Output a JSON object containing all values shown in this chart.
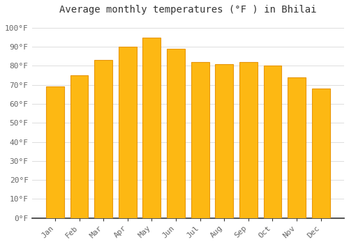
{
  "title": "Average monthly temperatures (°F ) in Bhilai",
  "months": [
    "Jan",
    "Feb",
    "Mar",
    "Apr",
    "May",
    "Jun",
    "Jul",
    "Aug",
    "Sep",
    "Oct",
    "Nov",
    "Dec"
  ],
  "values": [
    69,
    75,
    83,
    90,
    95,
    89,
    82,
    81,
    82,
    80,
    74,
    68
  ],
  "bar_color": "#FDB813",
  "bar_edge_color": "#E8960C",
  "background_color": "#FFFFFF",
  "plot_bg_color": "#FFFFFF",
  "grid_color": "#DDDDDD",
  "ytick_labels": [
    "0°F",
    "10°F",
    "20°F",
    "30°F",
    "40°F",
    "50°F",
    "60°F",
    "70°F",
    "80°F",
    "90°F",
    "100°F"
  ],
  "ytick_values": [
    0,
    10,
    20,
    30,
    40,
    50,
    60,
    70,
    80,
    90,
    100
  ],
  "ylim": [
    0,
    105
  ],
  "title_fontsize": 10,
  "tick_fontsize": 8,
  "font_family": "monospace",
  "tick_color": "#666666",
  "spine_color": "#333333"
}
